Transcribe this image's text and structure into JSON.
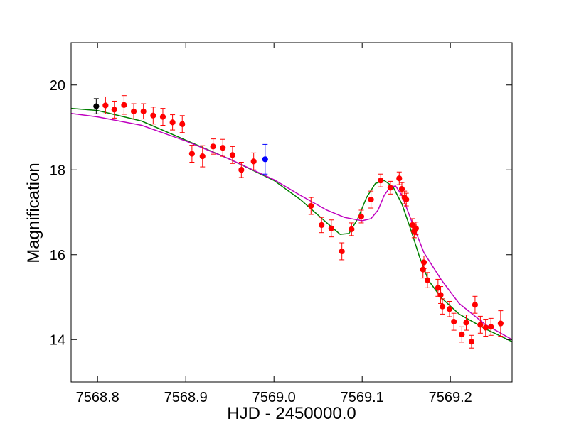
{
  "chart_data": {
    "type": "scatter",
    "xlabel": "HJD - 2450000.0",
    "ylabel": "Magnification",
    "xlim": [
      7568.77,
      7569.27
    ],
    "ylim": [
      13.0,
      21.0
    ],
    "x_ticks": [
      7568.8,
      7568.9,
      7569.0,
      7569.1,
      7569.2
    ],
    "x_tick_labels": [
      "7568.8",
      "7568.9",
      "7569.0",
      "7569.1",
      "7569.2"
    ],
    "y_ticks": [
      14,
      16,
      18,
      20
    ],
    "y_tick_labels": [
      "14",
      "16",
      "18",
      "20"
    ],
    "grid": false,
    "legend": "none",
    "series": [
      {
        "marker": "circle",
        "color": "#000000",
        "x": [
          7568.7985
        ],
        "y": [
          19.5
        ],
        "err": [
          0.18
        ]
      },
      {
        "marker": "circle",
        "color": "#ff0000",
        "x": [
          7568.809,
          7568.819,
          7568.83,
          7568.841,
          7568.852,
          7568.863,
          7568.874,
          7568.885,
          7568.896,
          7568.907,
          7568.919,
          7568.931,
          7568.942,
          7568.953,
          7568.963,
          7568.977,
          7569.042,
          7569.054,
          7569.065,
          7569.077,
          7569.088,
          7569.099,
          7569.11,
          7569.121,
          7569.132,
          7569.142,
          7569.145,
          7569.148,
          7569.15,
          7569.157,
          7569.159,
          7569.161,
          7569.169,
          7569.17,
          7569.174,
          7569.186,
          7569.189,
          7569.191,
          7569.199,
          7569.204,
          7569.213,
          7569.218,
          7569.224,
          7569.228,
          7569.234,
          7569.24,
          7569.246,
          7569.257
        ],
        "y": [
          19.52,
          19.42,
          19.53,
          19.38,
          19.38,
          19.28,
          19.25,
          19.12,
          19.08,
          18.38,
          18.32,
          18.55,
          18.52,
          18.35,
          18.0,
          18.2,
          17.15,
          16.7,
          16.62,
          16.08,
          16.6,
          16.9,
          17.3,
          17.75,
          17.58,
          17.8,
          17.55,
          17.35,
          17.3,
          16.7,
          16.55,
          16.62,
          15.65,
          15.82,
          15.4,
          15.22,
          15.05,
          14.78,
          14.72,
          14.42,
          14.12,
          14.4,
          13.95,
          14.82,
          14.35,
          14.28,
          14.3,
          14.38
        ],
        "err": [
          0.2,
          0.2,
          0.22,
          0.18,
          0.18,
          0.2,
          0.2,
          0.18,
          0.2,
          0.2,
          0.25,
          0.18,
          0.2,
          0.2,
          0.18,
          0.2,
          0.2,
          0.18,
          0.2,
          0.2,
          0.15,
          0.15,
          0.2,
          0.15,
          0.15,
          0.15,
          0.15,
          0.15,
          0.15,
          0.15,
          0.15,
          0.15,
          0.2,
          0.15,
          0.18,
          0.2,
          0.2,
          0.18,
          0.18,
          0.2,
          0.18,
          0.18,
          0.15,
          0.2,
          0.2,
          0.2,
          0.2,
          0.3
        ]
      },
      {
        "marker": "circle",
        "color": "#0000ff",
        "x": [
          7568.99
        ],
        "y": [
          18.25
        ],
        "err": [
          0.35
        ]
      },
      {
        "marker": "line",
        "color": "#008000",
        "x": [
          7568.77,
          7568.8,
          7568.85,
          7568.9,
          7568.95,
          7569.0,
          7569.03,
          7569.06,
          7569.075,
          7569.085,
          7569.095,
          7569.105,
          7569.115,
          7569.125,
          7569.135,
          7569.145,
          7569.155,
          7569.165,
          7569.175,
          7569.19,
          7569.21,
          7569.24,
          7569.27
        ],
        "y": [
          19.45,
          19.4,
          19.15,
          18.7,
          18.25,
          17.75,
          17.3,
          16.75,
          16.48,
          16.5,
          16.85,
          17.35,
          17.68,
          17.75,
          17.6,
          17.2,
          16.6,
          15.95,
          15.4,
          14.98,
          14.6,
          14.25,
          13.95
        ]
      },
      {
        "marker": "line",
        "color": "#bf00bf",
        "x": [
          7568.77,
          7568.8,
          7568.85,
          7568.9,
          7568.95,
          7569.0,
          7569.03,
          7569.06,
          7569.08,
          7569.1,
          7569.11,
          7569.118,
          7569.125,
          7569.132,
          7569.138,
          7569.145,
          7569.155,
          7569.17,
          7569.19,
          7569.21,
          7569.24,
          7569.27
        ],
        "y": [
          19.33,
          19.25,
          19.05,
          18.68,
          18.25,
          17.77,
          17.4,
          17.05,
          16.88,
          16.8,
          16.85,
          17.05,
          17.4,
          17.6,
          17.62,
          17.4,
          16.85,
          16.05,
          15.4,
          14.85,
          14.35,
          14.0
        ]
      }
    ]
  }
}
